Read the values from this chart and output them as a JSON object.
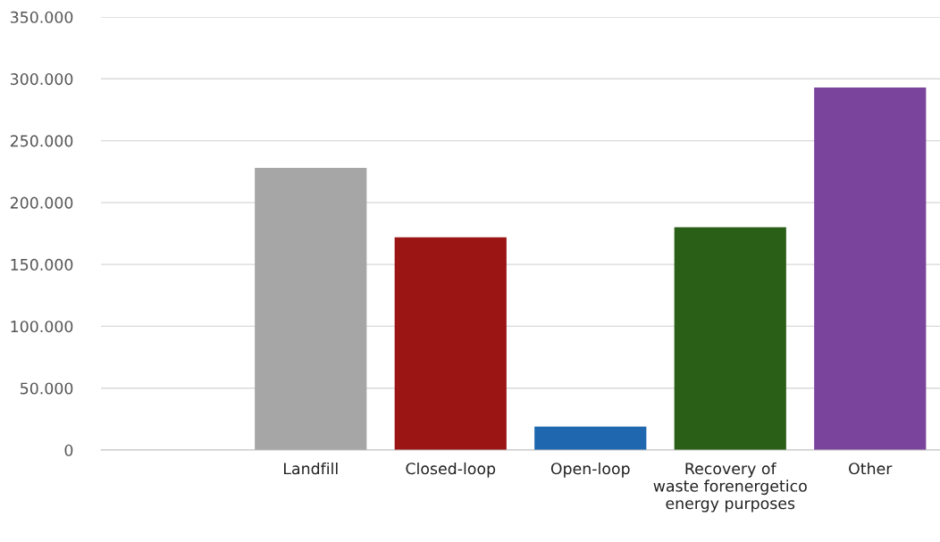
{
  "chart_data": {
    "type": "bar",
    "categories": [
      null,
      "Landfill",
      "Closed-loop",
      "Open-loop",
      "Recovery of\nwaste forenergetico\nenergy purposes",
      "Other"
    ],
    "values": [
      null,
      228000,
      172000,
      19000,
      180000,
      293000
    ],
    "colors": [
      "#a6a6a6",
      "#a6a6a6",
      "#9c1515",
      "#1f68b0",
      "#2a5f17",
      "#7a449c"
    ],
    "ylim": [
      0,
      350000
    ],
    "yticks": [
      {
        "value": 0,
        "label": "0"
      },
      {
        "value": 50000,
        "label": "50.000"
      },
      {
        "value": 100000,
        "label": "100.000"
      },
      {
        "value": 150000,
        "label": "150.000"
      },
      {
        "value": 200000,
        "label": "200.000"
      },
      {
        "value": 250000,
        "label": "250.000"
      },
      {
        "value": 300000,
        "label": "300.000"
      },
      {
        "value": 350000,
        "label": "350.000"
      }
    ],
    "grid": "y"
  }
}
